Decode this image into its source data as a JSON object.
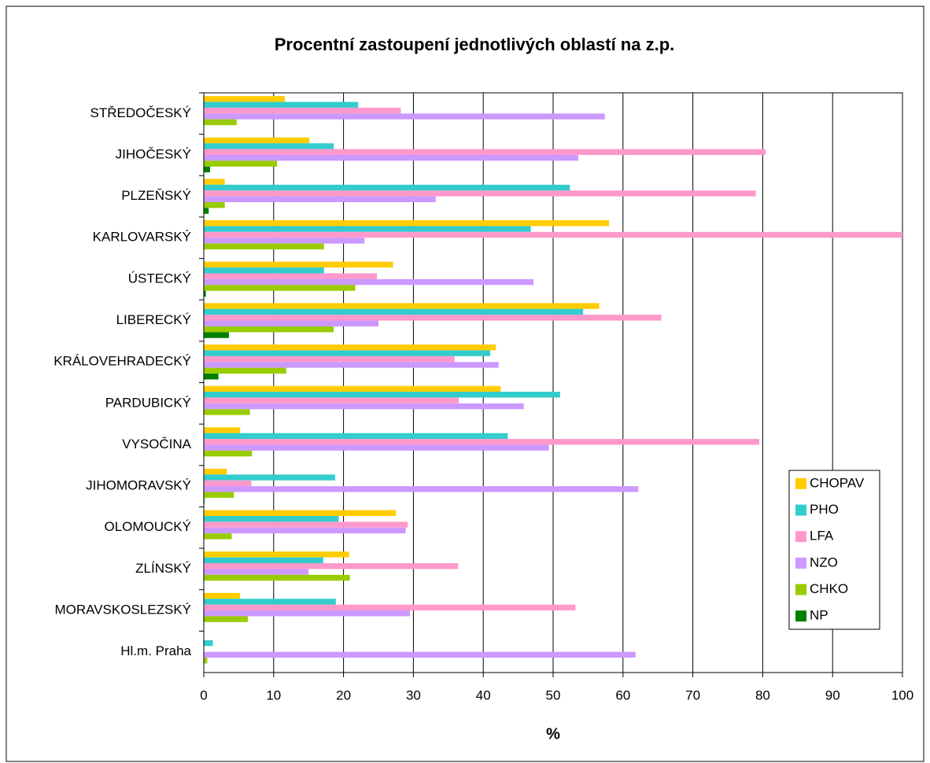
{
  "chart_data": {
    "type": "bar",
    "orientation": "horizontal",
    "title": "Procentní zastoupení jednotlivých oblastí na z.p.",
    "xlabel": "%",
    "categories": [
      "STŘEDOČESKÝ",
      "JIHOČESKÝ",
      "PLZEŇSKÝ",
      "KARLOVARSKÝ",
      "ÚSTECKÝ",
      "LIBERECKÝ",
      "KRÁLOVEHRADECKÝ",
      "PARDUBICKÝ",
      "VYSOČINA",
      "JIHOMORAVSKÝ",
      "OLOMOUCKÝ",
      "ZLÍNSKÝ",
      "MORAVSKOSLEZSKÝ",
      "Hl.m. Praha"
    ],
    "series": [
      {
        "name": "CHOPAV",
        "color": "#ffcc00",
        "values": [
          11.6,
          15.1,
          3.0,
          58.0,
          27.1,
          56.6,
          41.8,
          42.5,
          5.2,
          3.3,
          27.5,
          20.8,
          5.2,
          0
        ]
      },
      {
        "name": "PHO",
        "color": "#33cccc",
        "values": [
          22.1,
          18.6,
          52.4,
          46.8,
          17.2,
          54.3,
          41.0,
          51.0,
          43.5,
          18.8,
          19.3,
          17.1,
          18.9,
          1.3
        ]
      },
      {
        "name": "LFA",
        "color": "#ff99cc",
        "values": [
          28.2,
          80.4,
          79.0,
          100,
          24.8,
          65.5,
          35.9,
          36.5,
          79.5,
          6.8,
          29.2,
          36.4,
          53.2,
          0
        ]
      },
      {
        "name": "NZO",
        "color": "#cc99ff",
        "values": [
          57.4,
          53.6,
          33.2,
          23.0,
          47.2,
          25.0,
          42.2,
          45.8,
          49.4,
          62.2,
          28.9,
          15.0,
          29.5,
          61.8
        ]
      },
      {
        "name": "CHKO",
        "color": "#99cc00",
        "values": [
          4.7,
          10.5,
          3.0,
          17.2,
          21.7,
          18.6,
          11.8,
          6.6,
          6.9,
          4.3,
          4.0,
          20.9,
          6.3,
          0.5
        ]
      },
      {
        "name": "NP",
        "color": "#008000",
        "values": [
          0,
          0.9,
          0.7,
          0,
          0.3,
          3.6,
          2.1,
          0,
          0,
          0.1,
          0,
          0,
          0,
          0
        ]
      }
    ],
    "xlim": [
      0,
      100
    ],
    "xticks": [
      0,
      10,
      20,
      30,
      40,
      50,
      60,
      70,
      80,
      90,
      100
    ],
    "grid": true,
    "legend": "right"
  }
}
